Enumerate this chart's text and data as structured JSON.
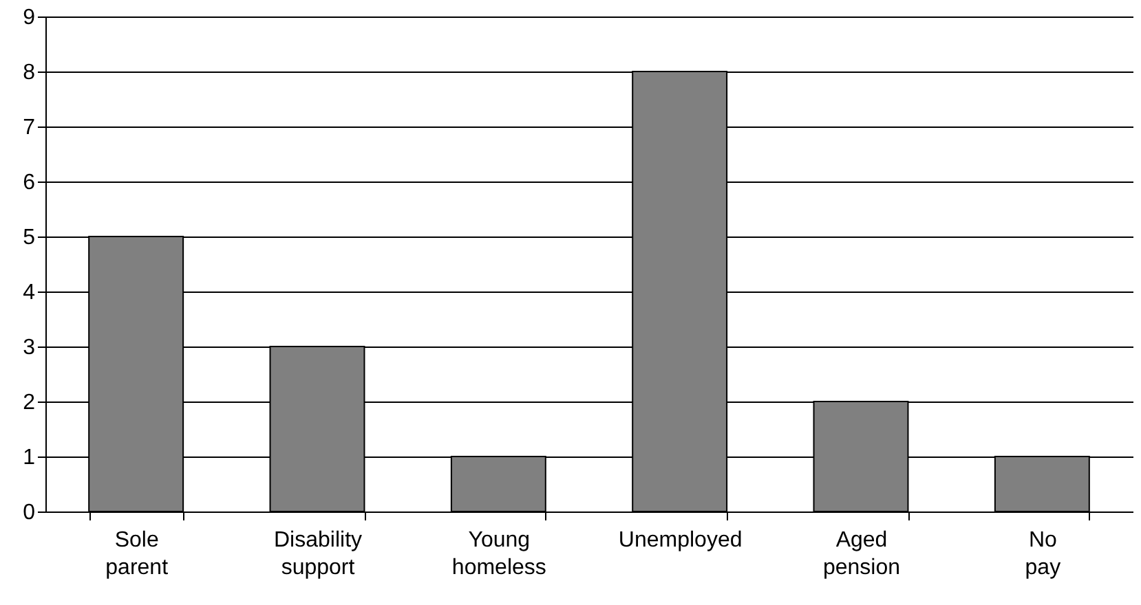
{
  "chart_data": {
    "type": "bar",
    "categories": [
      "Sole parent",
      "Disability support",
      "Young homeless",
      "Unemployed",
      "Aged pension",
      "No pay"
    ],
    "values": [
      5,
      3,
      1,
      8,
      2,
      1
    ],
    "color": "#808080",
    "ylim": [
      0,
      9
    ],
    "yticks": [
      0,
      1,
      2,
      3,
      4,
      5,
      6,
      7,
      8,
      9
    ],
    "grid": "y"
  }
}
